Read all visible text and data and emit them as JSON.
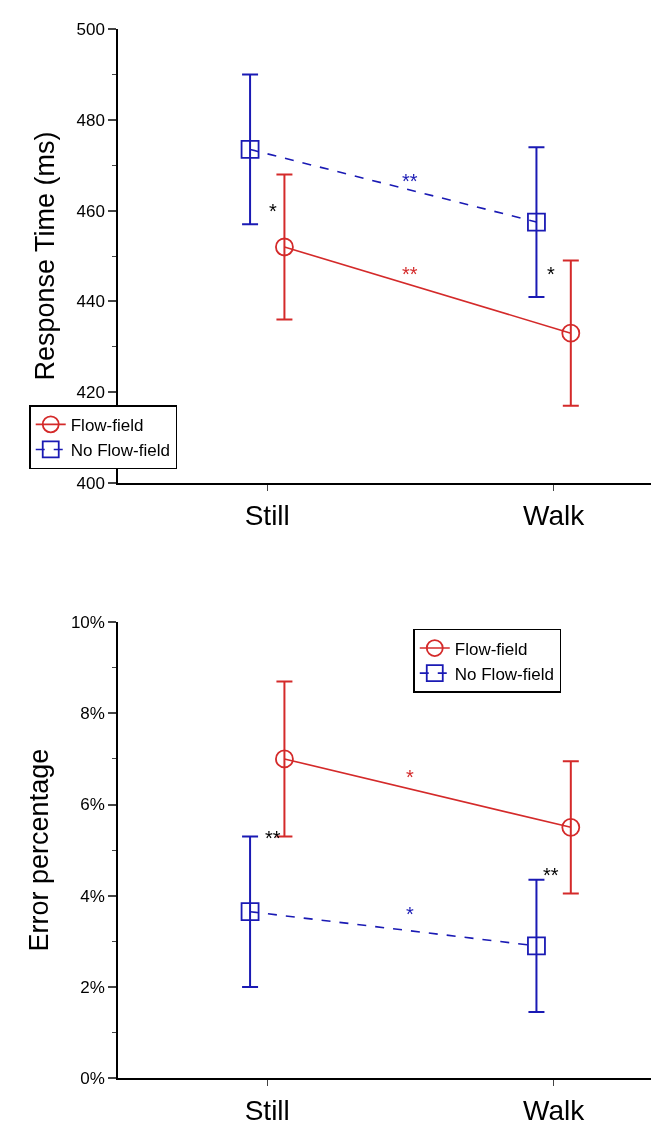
{
  "chart_data": [
    {
      "type": "line",
      "ylabel": "Response Time (ms)",
      "categories": [
        "Still",
        "Walk"
      ],
      "ylim": [
        400,
        500
      ],
      "yticks": [
        400,
        {
          "value": 410,
          "label": null
        },
        420,
        {
          "value": 430,
          "label": null
        },
        440,
        {
          "value": 450,
          "label": null
        },
        460,
        {
          "value": 470,
          "label": null
        },
        480,
        {
          "value": 490,
          "label": null
        },
        500
      ],
      "legend": "bottom left",
      "series": [
        {
          "name": "Flow-field",
          "color": "#d42a2a",
          "values": [
            452,
            433
          ],
          "errors": [
            16,
            16
          ],
          "marker": "circle",
          "line_style": "solid"
        },
        {
          "name": "No Flow-field",
          "color": "#1a1ab4",
          "values": [
            473.5,
            457.5
          ],
          "errors": [
            16.5,
            16.5
          ],
          "marker": "square",
          "line_style": "dashed"
        }
      ],
      "annotations": [
        "*",
        "*",
        "**",
        "**"
      ]
    },
    {
      "type": "line",
      "ylabel": "Error percentage",
      "categories": [
        "Still",
        "Walk"
      ],
      "ylim": [
        0,
        10
      ],
      "yticks": [
        {
          "value": 0,
          "label": "0%"
        },
        {
          "value": 1,
          "label": null
        },
        {
          "value": 2,
          "label": "2%"
        },
        {
          "value": 3,
          "label": null
        },
        {
          "value": 4,
          "label": "4%"
        },
        {
          "value": 5,
          "label": null
        },
        {
          "value": 6,
          "label": "6%"
        },
        {
          "value": 7,
          "label": null
        },
        {
          "value": 8,
          "label": "8%"
        },
        {
          "value": 9,
          "label": null
        },
        {
          "value": 10,
          "label": "10%"
        }
      ],
      "legend": "top right",
      "series": [
        {
          "name": "Flow-field",
          "color": "#d42a2a",
          "values": [
            7.0,
            5.5
          ],
          "errors": [
            1.7,
            1.45
          ],
          "marker": "circle",
          "line_style": "solid"
        },
        {
          "name": "No Flow-field",
          "color": "#1a1ab4",
          "values": [
            3.65,
            2.9
          ],
          "errors": [
            1.65,
            1.45
          ],
          "marker": "square",
          "line_style": "dashed"
        }
      ],
      "annotations": [
        "**",
        "**",
        "*",
        "*"
      ]
    }
  ]
}
